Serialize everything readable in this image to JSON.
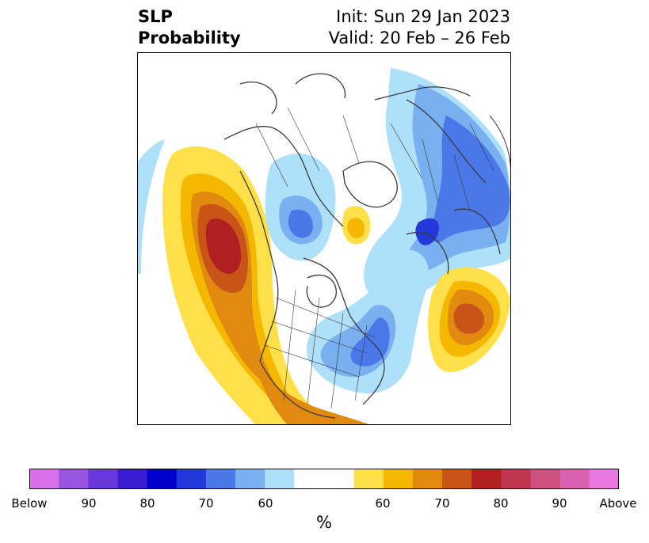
{
  "title": {
    "left_line1": "SLP",
    "left_line2": "Probability",
    "right_line1": "Init: Sun 29 Jan 2023",
    "right_line2": "Valid: 20 Feb – 26 Feb"
  },
  "colorbar": {
    "colors": [
      "#d870e8",
      "#9a55e0",
      "#6a38d8",
      "#3a1cd0",
      "#0000c8",
      "#2238d8",
      "#4a78e8",
      "#78b0f0",
      "#aee0fa",
      "#ffffff",
      "#ffe04a",
      "#f4b800",
      "#e08a10",
      "#c85418",
      "#b02020",
      "#c03550",
      "#cc5080",
      "#da60b0",
      "#e878e0"
    ],
    "tick_labels": [
      "Below",
      "90",
      "80",
      "70",
      "60",
      "60",
      "70",
      "80",
      "90",
      "Above"
    ],
    "unit": "%"
  },
  "map": {
    "background": "#ffffff",
    "coastline_color": "#3a3a3a"
  }
}
